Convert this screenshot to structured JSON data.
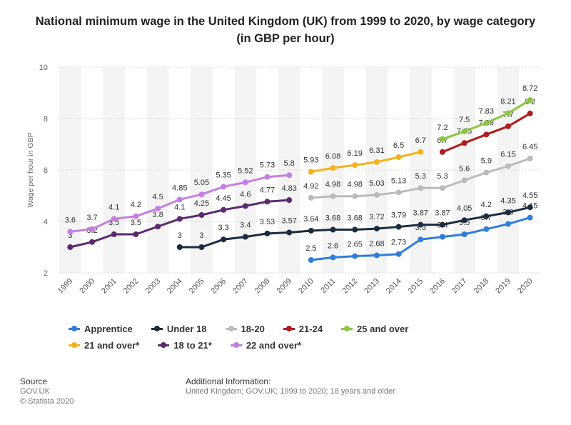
{
  "title": "National minimum wage in the United Kingdom (UK) from 1999 to 2020, by wage category (in GBP per hour)",
  "footer": {
    "source_label": "Source",
    "source_lines": [
      "GOV.UK",
      "© Statista 2020"
    ],
    "info_label": "Additional Information:",
    "info_text": "United Kingdom; GOV.UK; 1999 to 2020; 18 years and older"
  },
  "chart_data": {
    "type": "line",
    "title": "National minimum wage in the United Kingdom (UK) from 1999 to 2020, by wage category (in GBP per hour)",
    "xlabel": "",
    "ylabel": "Wage per hour in GBP",
    "x": [
      "1999",
      "2000",
      "2001",
      "2002",
      "2003",
      "2004",
      "2005",
      "2006",
      "2007",
      "2008",
      "2009",
      "2010",
      "2011",
      "2012",
      "2013",
      "2014",
      "2015",
      "2016",
      "2017",
      "2018",
      "2019",
      "2020"
    ],
    "ylim": [
      2,
      10
    ],
    "yticks": [
      2,
      4,
      6,
      8,
      10
    ],
    "grid": true,
    "legend_position": "bottom",
    "series": [
      {
        "name": "Apprentice",
        "color": "#2f7ed8",
        "values": [
          null,
          null,
          null,
          null,
          null,
          null,
          null,
          null,
          null,
          null,
          null,
          2.5,
          2.6,
          2.65,
          2.68,
          2.73,
          3.3,
          3.4,
          3.5,
          3.7,
          3.9,
          4.15
        ]
      },
      {
        "name": "Under 18",
        "color": "#1a2c3e",
        "values": [
          null,
          null,
          null,
          null,
          null,
          3,
          3,
          3.3,
          3.4,
          3.53,
          3.57,
          3.64,
          3.68,
          3.68,
          3.72,
          3.79,
          3.87,
          3.87,
          4.05,
          4.2,
          4.35,
          4.55
        ]
      },
      {
        "name": "18-20",
        "color": "#bbbbbb",
        "values": [
          null,
          null,
          null,
          null,
          null,
          null,
          null,
          null,
          null,
          null,
          null,
          4.92,
          4.98,
          4.98,
          5.03,
          5.13,
          5.3,
          5.3,
          5.6,
          5.9,
          6.15,
          6.45
        ]
      },
      {
        "name": "21-24",
        "color": "#b01c1c",
        "values": [
          null,
          null,
          null,
          null,
          null,
          null,
          null,
          null,
          null,
          null,
          null,
          null,
          null,
          null,
          null,
          null,
          null,
          6.7,
          7.05,
          7.38,
          7.7,
          8.2
        ]
      },
      {
        "name": "25 and over",
        "color": "#8cc63e",
        "values": [
          null,
          null,
          null,
          null,
          null,
          null,
          null,
          null,
          null,
          null,
          null,
          null,
          null,
          null,
          null,
          null,
          null,
          7.2,
          7.5,
          7.83,
          8.21,
          8.72
        ]
      },
      {
        "name": "21 and over*",
        "color": "#f5b21b",
        "values": [
          null,
          null,
          null,
          null,
          null,
          null,
          null,
          null,
          null,
          null,
          null,
          5.93,
          6.08,
          6.19,
          6.31,
          6.5,
          6.7,
          null,
          null,
          null,
          null,
          null
        ]
      },
      {
        "name": "18 to 21*",
        "color": "#5b2a6e",
        "values": [
          3,
          3.2,
          3.5,
          3.5,
          3.8,
          4.1,
          4.25,
          4.45,
          4.6,
          4.77,
          4.83,
          null,
          null,
          null,
          null,
          null,
          null,
          null,
          null,
          null,
          null,
          null
        ]
      },
      {
        "name": "22 and over*",
        "color": "#c57fe0",
        "values": [
          3.6,
          3.7,
          4.1,
          4.2,
          4.5,
          4.85,
          5.05,
          5.35,
          5.52,
          5.73,
          5.8,
          null,
          null,
          null,
          null,
          null,
          null,
          null,
          null,
          null,
          null,
          null
        ]
      }
    ]
  }
}
